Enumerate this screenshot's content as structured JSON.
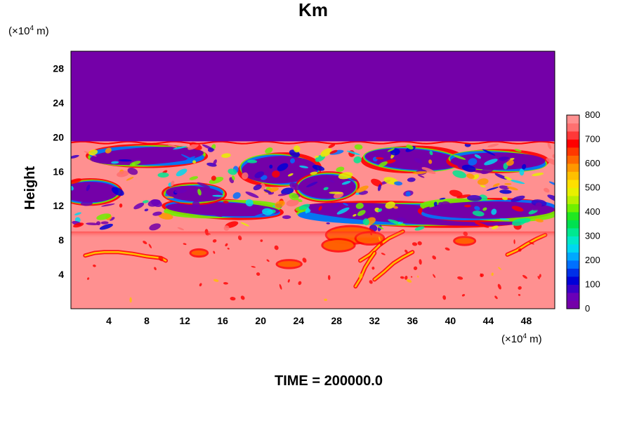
{
  "chart_data": {
    "type": "heatmap",
    "title": "Km",
    "ylabel": "Height",
    "xlabel": "",
    "x_unit_prefix": "(×10",
    "x_unit_exp": "4",
    "x_unit_suffix": " m)",
    "y_unit_prefix": "(×10",
    "y_unit_exp": "4",
    "y_unit_suffix": " m)",
    "footer": "TIME = 200000.0",
    "xlim": [
      0,
      51
    ],
    "ylim": [
      0,
      30
    ],
    "x_ticks": [
      4,
      8,
      12,
      16,
      20,
      24,
      28,
      32,
      36,
      40,
      44,
      48
    ],
    "y_ticks": [
      4,
      8,
      12,
      16,
      20,
      24,
      28
    ],
    "colorbar": {
      "range": [
        0,
        800
      ],
      "tick_values": [
        0,
        100,
        200,
        300,
        400,
        500,
        600,
        700,
        800
      ],
      "colors": [
        "#7400a8",
        "#6a00b8",
        "#3a00c8",
        "#0000d8",
        "#0030e8",
        "#0070ff",
        "#00a8ff",
        "#00d8f0",
        "#00e8c8",
        "#00e890",
        "#00e050",
        "#20e820",
        "#70f000",
        "#b8f000",
        "#e8f000",
        "#ffe000",
        "#ffc000",
        "#ff9800",
        "#ff6800",
        "#ff3800",
        "#ff0000",
        "#ff3838",
        "#ff7070",
        "#ff9090"
      ]
    },
    "field": {
      "upper_layer": {
        "y_from": 19.5,
        "y_to": 30,
        "value": 0
      },
      "turbulent_band": {
        "y_from": 9,
        "y_to": 19.5
      },
      "lower_layer": {
        "y_from": 0,
        "y_to": 9,
        "value": 800
      },
      "low_streaks": [
        {
          "x": [
            1.5,
            2.5,
            3.5,
            5,
            6.5,
            8,
            9.5,
            10
          ],
          "y": [
            6.2,
            6.5,
            6.6,
            6.6,
            6.4,
            6.1,
            5.9,
            5.6
          ]
        },
        {
          "x": [
            30.5,
            31.5,
            32.5,
            33.5,
            35
          ],
          "y": [
            5.6,
            6.3,
            7.4,
            8.2,
            9
          ]
        },
        {
          "x": [
            32,
            33,
            34,
            35,
            36
          ],
          "y": [
            3.4,
            4.3,
            5.3,
            6,
            6.6
          ]
        },
        {
          "x": [
            30,
            30.5,
            31,
            31.5,
            32
          ],
          "y": [
            2.6,
            3.5,
            4.8,
            5.7,
            6.5
          ]
        },
        {
          "x": [
            46,
            47,
            48,
            49,
            50
          ],
          "y": [
            6.3,
            6.8,
            7.5,
            8.1,
            8.6
          ]
        }
      ],
      "hot_spots": [
        {
          "x": 29.5,
          "y": 8.6,
          "rx": 2.5,
          "ry": 0.9
        },
        {
          "x": 28.2,
          "y": 7.4,
          "rx": 1.6,
          "ry": 0.6
        },
        {
          "x": 31.5,
          "y": 8.2,
          "rx": 1.4,
          "ry": 0.6
        },
        {
          "x": 23,
          "y": 5.2,
          "rx": 1.2,
          "ry": 0.35
        },
        {
          "x": 41.5,
          "y": 7.9,
          "rx": 1.0,
          "ry": 0.35
        },
        {
          "x": 13.5,
          "y": 6.5,
          "rx": 0.8,
          "ry": 0.3
        }
      ]
    }
  }
}
